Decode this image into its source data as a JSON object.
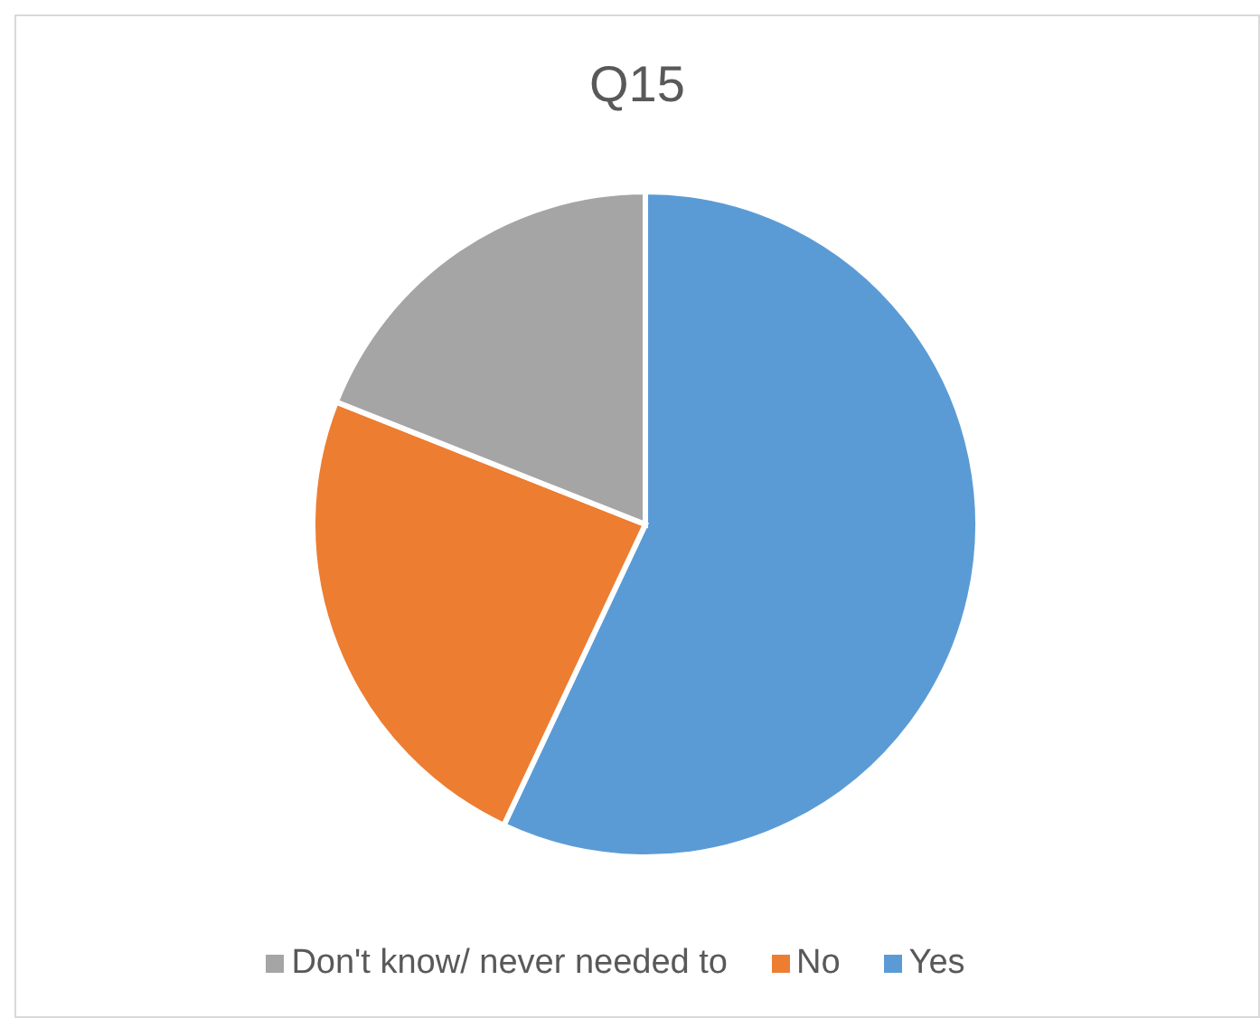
{
  "chart_data": {
    "type": "pie",
    "title": "Q15",
    "categories": [
      "Yes",
      "No",
      "Don't know/ never needed to"
    ],
    "values": [
      57,
      24,
      19
    ],
    "colors": [
      "#5b9bd5",
      "#ed7d31",
      "#a5a5a5"
    ],
    "legend": "bottom"
  }
}
